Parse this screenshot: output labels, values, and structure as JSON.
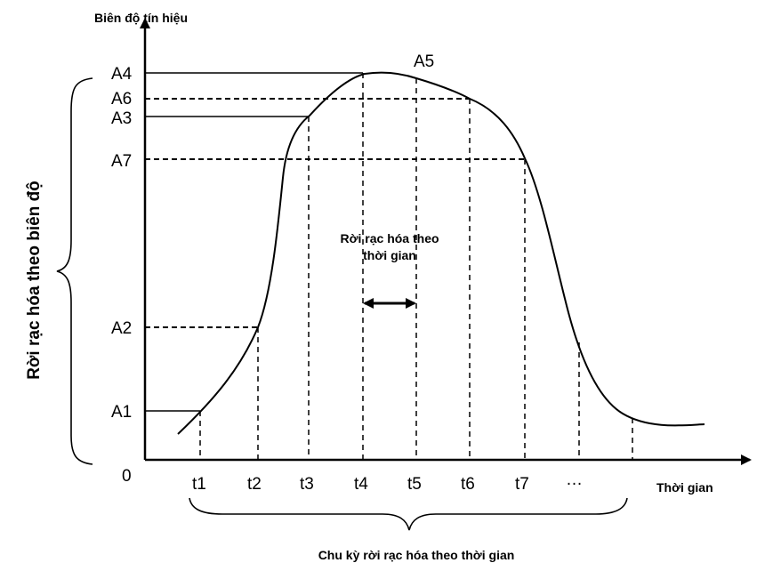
{
  "diagram": {
    "y_axis_title": "Biên độ tín hiệu",
    "x_axis_title": "Thời gian",
    "origin_label": "0",
    "amplitude_labels": [
      "A1",
      "A2",
      "A3",
      "A4",
      "A6",
      "A7"
    ],
    "peak_label": "A5",
    "time_labels": [
      "t1",
      "t2",
      "t3",
      "t4",
      "t5",
      "t6",
      "t7"
    ],
    "time_ellipsis": "…",
    "center_text_line1": "Rời rạc hóa theo",
    "center_text_line2": "thời gian",
    "left_brace_label": "Rời rạc hóa theo biên độ",
    "bottom_brace_label": "Chu kỳ rời rạc hóa theo thời gian"
  }
}
